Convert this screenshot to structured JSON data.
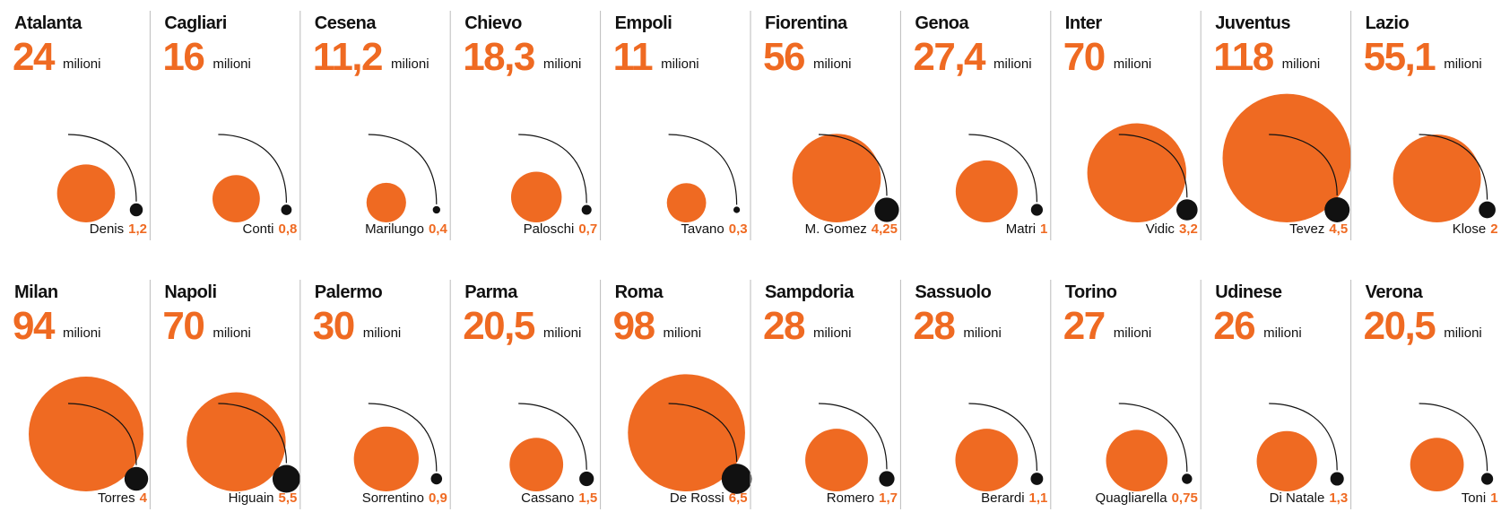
{
  "unit": "milioni",
  "teams": [
    {
      "name": "Atalanta",
      "budget": 24,
      "player": "Denis",
      "salary": {
        "value": 1.2,
        "label": "1,2"
      }
    },
    {
      "name": "Cagliari",
      "budget": 16,
      "player": "Conti",
      "salary": {
        "value": 0.8,
        "label": "0,8"
      }
    },
    {
      "name": "Cesena",
      "budget": {
        "value": 11.2,
        "label": "11,2"
      },
      "player": "Marilungo",
      "salary": {
        "value": 0.4,
        "label": "0,4"
      }
    },
    {
      "name": "Chievo",
      "budget": {
        "value": 18.3,
        "label": "18,3"
      },
      "player": "Paloschi",
      "salary": {
        "value": 0.7,
        "label": "0,7"
      }
    },
    {
      "name": "Empoli",
      "budget": 11,
      "player": "Tavano",
      "salary": {
        "value": 0.3,
        "label": "0,3"
      }
    },
    {
      "name": "Fiorentina",
      "budget": 56,
      "player": "M. Gomez",
      "salary": {
        "value": 4.25,
        "label": "4,25"
      }
    },
    {
      "name": "Genoa",
      "budget": {
        "value": 27.4,
        "label": "27,4"
      },
      "player": "Matri",
      "salary": 1
    },
    {
      "name": "Inter",
      "budget": 70,
      "player": "Vidic",
      "salary": {
        "value": 3.2,
        "label": "3,2"
      }
    },
    {
      "name": "Juventus",
      "budget": 118,
      "player": "Tevez",
      "salary": {
        "value": 4.5,
        "label": "4,5"
      }
    },
    {
      "name": "Lazio",
      "budget": {
        "value": 55.1,
        "label": "55,1"
      },
      "player": "Klose",
      "salary": 2
    },
    {
      "name": "Milan",
      "budget": 94,
      "player": "Torres",
      "salary": 4
    },
    {
      "name": "Napoli",
      "budget": 70,
      "player": "Higuain",
      "salary": {
        "value": 5.5,
        "label": "5,5"
      }
    },
    {
      "name": "Palermo",
      "budget": 30,
      "player": "Sorrentino",
      "salary": {
        "value": 0.9,
        "label": "0,9"
      }
    },
    {
      "name": "Parma",
      "budget": {
        "value": 20.5,
        "label": "20,5"
      },
      "player": "Cassano",
      "salary": {
        "value": 1.5,
        "label": "1,5"
      }
    },
    {
      "name": "Roma",
      "budget": 98,
      "player": "De Rossi",
      "salary": {
        "value": 6.5,
        "label": "6,5"
      }
    },
    {
      "name": "Sampdoria",
      "budget": 28,
      "player": "Romero",
      "salary": {
        "value": 1.7,
        "label": "1,7"
      }
    },
    {
      "name": "Sassuolo",
      "budget": 28,
      "player": "Berardi",
      "salary": {
        "value": 1.1,
        "label": "1,1"
      }
    },
    {
      "name": "Torino",
      "budget": 27,
      "player": "Quagliarella",
      "salary": {
        "value": 0.75,
        "label": "0,75"
      }
    },
    {
      "name": "Udinese",
      "budget": 26,
      "player": "Di Natale",
      "salary": {
        "value": 1.3,
        "label": "1,3"
      }
    },
    {
      "name": "Verona",
      "budget": {
        "value": 20.5,
        "label": "20,5"
      },
      "player": "Toni",
      "salary": 1
    }
  ]
}
